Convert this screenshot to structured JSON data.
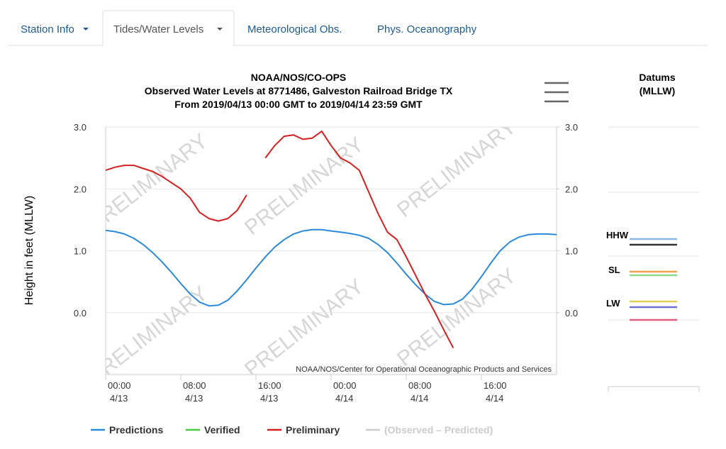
{
  "tabs": [
    "Station Info",
    "Tides/Water Levels",
    "Meteorological Obs.",
    "Phys. Oceanography"
  ],
  "datums": {
    "title": "Datums",
    "subtitle": "(MLLW)",
    "labels": [
      "HHW",
      "SL",
      "LW"
    ]
  },
  "chart_data": {
    "type": "line",
    "title": "NOAA/NOS/CO-OPS",
    "subtitle": "Observed Water Levels at 8771486, Galveston Railroad Bridge TX",
    "subtitle2": "From 2019/04/13 00:00 GMT to 2019/04/14 23:59 GMT",
    "ylabel": "Height in feet (MLLW)",
    "credit": "NOAA/NOS/Center for Operational Oceanographic Products and Services",
    "watermark": "PRELIMINARY",
    "x": [
      0,
      1,
      2,
      3,
      4,
      5,
      6,
      7,
      8,
      9,
      10,
      11,
      12,
      13,
      14,
      15,
      16,
      17,
      18,
      19,
      20,
      21,
      22,
      23,
      24,
      25,
      26,
      27,
      28,
      29,
      30,
      31,
      32,
      33,
      34,
      35,
      36,
      37,
      38,
      39,
      40,
      41,
      42,
      43,
      44,
      45,
      46,
      47,
      48
    ],
    "xlim": [
      0,
      48
    ],
    "xticks": [
      {
        "value": 0,
        "label": "00:00 4/13"
      },
      {
        "value": 8,
        "label": "08:00 4/13"
      },
      {
        "value": 16,
        "label": "16:00 4/13"
      },
      {
        "value": 24,
        "label": "00:00 4/14"
      },
      {
        "value": 32,
        "label": "08:00 4/14"
      },
      {
        "value": 40,
        "label": "16:00 4/14"
      }
    ],
    "ylim": [
      -1,
      3
    ],
    "yticks": [
      {
        "value": 3,
        "label": "3.0"
      },
      {
        "value": 2,
        "label": "2.0"
      },
      {
        "value": 1,
        "label": "1.0"
      },
      {
        "value": 0,
        "label": "0.0"
      }
    ],
    "y2lim": [
      -1,
      3
    ],
    "y2ticks": [
      {
        "value": 3,
        "label": "3.0"
      },
      {
        "value": 2,
        "label": "2.0"
      },
      {
        "value": 1,
        "label": "1.0"
      },
      {
        "value": 0,
        "label": "0.0"
      }
    ],
    "grid": true,
    "legend": "bottom",
    "series": [
      {
        "name": "Predictions",
        "color": "#2b8ad8",
        "values": [
          1.33,
          1.31,
          1.27,
          1.2,
          1.1,
          0.97,
          0.82,
          0.65,
          0.47,
          0.3,
          0.17,
          0.11,
          0.12,
          0.2,
          0.35,
          0.53,
          0.72,
          0.9,
          1.06,
          1.18,
          1.27,
          1.32,
          1.34,
          1.34,
          1.32,
          1.3,
          1.28,
          1.25,
          1.2,
          1.1,
          0.97,
          0.8,
          0.62,
          0.45,
          0.3,
          0.18,
          0.13,
          0.14,
          0.22,
          0.38,
          0.58,
          0.8,
          1.0,
          1.14,
          1.22,
          1.26,
          1.27,
          1.27,
          1.26
        ]
      },
      {
        "name": "Verified",
        "color": "#44cc44",
        "values": [
          null,
          null,
          null,
          null,
          null,
          null,
          null,
          null,
          null,
          null,
          null,
          null,
          null,
          null,
          null,
          null,
          null,
          null,
          null,
          null,
          null,
          null,
          null,
          null,
          null,
          null,
          null,
          null,
          null,
          null,
          null,
          null,
          null,
          null,
          null,
          null,
          null,
          null,
          null,
          null,
          null,
          null,
          null,
          null,
          null,
          null,
          null,
          null,
          null
        ]
      },
      {
        "name": "Preliminary",
        "color": "#d42020",
        "values": [
          2.3,
          2.35,
          2.38,
          2.38,
          2.33,
          2.28,
          2.2,
          2.1,
          2.0,
          1.85,
          1.62,
          1.52,
          1.48,
          1.52,
          1.65,
          1.9,
          null,
          2.5,
          2.7,
          2.85,
          2.87,
          2.8,
          2.82,
          2.93,
          2.7,
          2.5,
          2.42,
          2.3,
          1.95,
          1.6,
          1.3,
          1.18,
          0.9,
          0.6,
          0.3,
          0.02,
          -0.28,
          -0.57,
          null,
          null,
          null,
          null,
          null,
          null,
          null,
          null,
          null,
          null,
          null
        ]
      },
      {
        "name": "(Observed – Predicted)",
        "color": "#cccccc",
        "values": [
          null,
          null,
          null,
          null,
          null,
          null,
          null,
          null,
          null,
          null,
          null,
          null,
          null,
          null,
          null,
          null,
          null,
          null,
          null,
          null,
          null,
          null,
          null,
          null,
          null,
          null,
          null,
          null,
          null,
          null,
          null,
          null,
          null,
          null,
          null,
          null,
          null,
          null,
          null,
          null,
          null,
          null,
          null,
          null,
          null,
          null,
          null,
          null,
          null
        ]
      }
    ]
  }
}
